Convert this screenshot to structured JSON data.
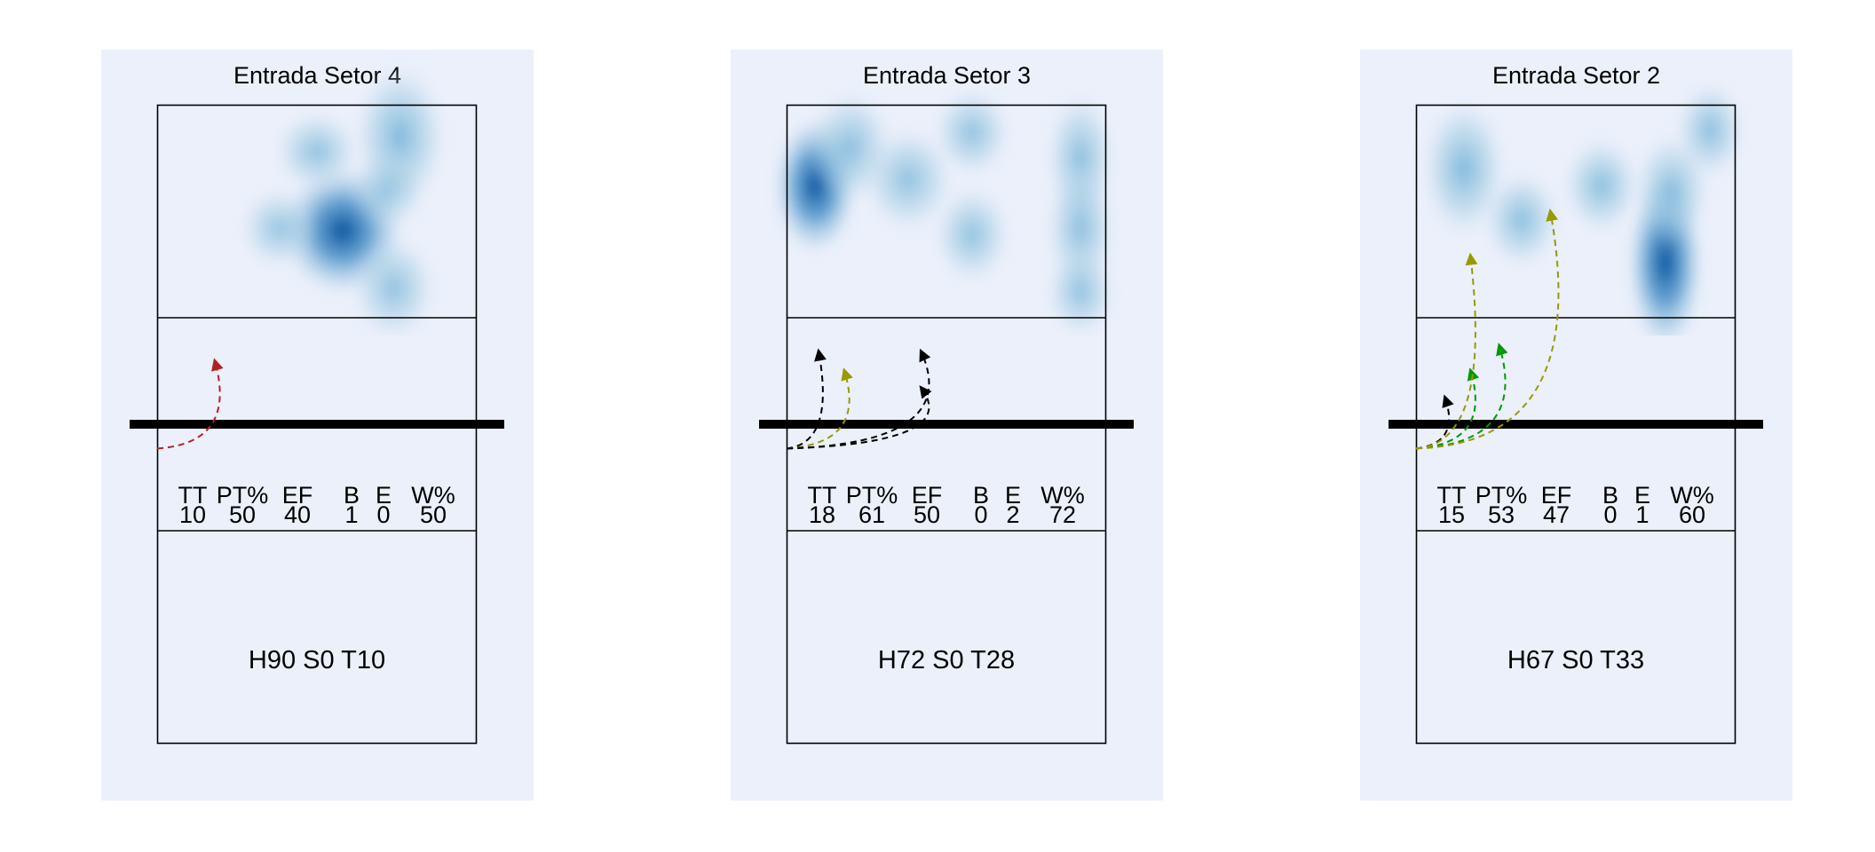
{
  "chart_data": [
    {
      "type": "heatmap",
      "title": "Entrada Setor 4",
      "stats_headers": [
        "TT",
        "PT%",
        "EF",
        "B",
        "E",
        "W%"
      ],
      "stats_values": [
        "10",
        "50",
        "40",
        "1",
        "0",
        "50"
      ],
      "rotation_label": "H90 S0 T10",
      "heat_spots": [
        {
          "x": 0.58,
          "y": 0.59,
          "w": 1.0,
          "rx": 0.16,
          "ry": 0.16
        },
        {
          "x": 0.76,
          "y": 0.15,
          "w": 0.55,
          "rx": 0.12,
          "ry": 0.18
        },
        {
          "x": 0.5,
          "y": 0.22,
          "w": 0.3,
          "rx": 0.11,
          "ry": 0.1
        },
        {
          "x": 0.74,
          "y": 0.86,
          "w": 0.3,
          "rx": 0.11,
          "ry": 0.13
        },
        {
          "x": 0.38,
          "y": 0.58,
          "w": 0.25,
          "rx": 0.1,
          "ry": 0.1
        },
        {
          "x": 0.72,
          "y": 0.4,
          "w": 0.2,
          "rx": 0.1,
          "ry": 0.1
        }
      ],
      "attacks": [
        {
          "from": [
            0.0,
            0.38
          ],
          "to": [
            0.18,
            0.13
          ],
          "color": "#b22222"
        }
      ]
    },
    {
      "type": "heatmap",
      "title": "Entrada Setor 3",
      "stats_headers": [
        "TT",
        "PT%",
        "EF",
        "B",
        "E",
        "W%"
      ],
      "stats_values": [
        "18",
        "61",
        "50",
        "0",
        "2",
        "72"
      ],
      "rotation_label": "H72 S0 T28",
      "heat_spots": [
        {
          "x": 0.09,
          "y": 0.38,
          "w": 1.0,
          "rx": 0.11,
          "ry": 0.17
        },
        {
          "x": 0.2,
          "y": 0.2,
          "w": 0.35,
          "rx": 0.11,
          "ry": 0.14
        },
        {
          "x": 0.38,
          "y": 0.35,
          "w": 0.3,
          "rx": 0.12,
          "ry": 0.13
        },
        {
          "x": 0.58,
          "y": 0.13,
          "w": 0.3,
          "rx": 0.1,
          "ry": 0.11
        },
        {
          "x": 0.58,
          "y": 0.61,
          "w": 0.3,
          "rx": 0.1,
          "ry": 0.12
        },
        {
          "x": 0.92,
          "y": 0.25,
          "w": 0.35,
          "rx": 0.09,
          "ry": 0.16
        },
        {
          "x": 0.92,
          "y": 0.58,
          "w": 0.35,
          "rx": 0.09,
          "ry": 0.16
        },
        {
          "x": 0.92,
          "y": 0.88,
          "w": 0.3,
          "rx": 0.09,
          "ry": 0.11
        }
      ],
      "attacks": [
        {
          "from": [
            0.0,
            0.38
          ],
          "to": [
            0.1,
            0.08
          ],
          "color": "#000000"
        },
        {
          "from": [
            0.0,
            0.38
          ],
          "to": [
            0.18,
            0.18
          ],
          "color": "#999900"
        },
        {
          "from": [
            0.0,
            0.38
          ],
          "to": [
            0.42,
            0.08
          ],
          "color": "#000000"
        },
        {
          "from": [
            0.0,
            0.38
          ],
          "to": [
            0.42,
            0.27
          ],
          "color": "#000000"
        }
      ]
    },
    {
      "type": "heatmap",
      "title": "Entrada Setor 2",
      "stats_headers": [
        "TT",
        "PT%",
        "EF",
        "B",
        "E",
        "W%"
      ],
      "stats_values": [
        "15",
        "53",
        "47",
        "0",
        "1",
        "60"
      ],
      "rotation_label": "H67 S0 T33",
      "heat_spots": [
        {
          "x": 0.78,
          "y": 0.74,
          "w": 1.0,
          "rx": 0.1,
          "ry": 0.22
        },
        {
          "x": 0.15,
          "y": 0.3,
          "w": 0.55,
          "rx": 0.11,
          "ry": 0.17
        },
        {
          "x": 0.33,
          "y": 0.54,
          "w": 0.35,
          "rx": 0.1,
          "ry": 0.12
        },
        {
          "x": 0.58,
          "y": 0.38,
          "w": 0.35,
          "rx": 0.1,
          "ry": 0.12
        },
        {
          "x": 0.92,
          "y": 0.12,
          "w": 0.35,
          "rx": 0.09,
          "ry": 0.12
        },
        {
          "x": 0.8,
          "y": 0.4,
          "w": 0.35,
          "rx": 0.1,
          "ry": 0.14
        }
      ],
      "attacks": [
        {
          "from": [
            0.0,
            0.38
          ],
          "to": [
            0.09,
            0.32
          ],
          "color": "#000000"
        },
        {
          "from": [
            0.0,
            0.38
          ],
          "to": [
            0.17,
            0.18
          ],
          "color": "#009900"
        },
        {
          "from": [
            0.0,
            0.38
          ],
          "to": [
            0.26,
            0.05
          ],
          "color": "#009900"
        },
        {
          "from": [
            0.0,
            0.38
          ],
          "to": [
            0.17,
            -0.42
          ],
          "color": "#999900"
        },
        {
          "from": [
            0.0,
            0.38
          ],
          "to": [
            0.42,
            -0.65
          ],
          "color": "#999900"
        }
      ]
    }
  ]
}
